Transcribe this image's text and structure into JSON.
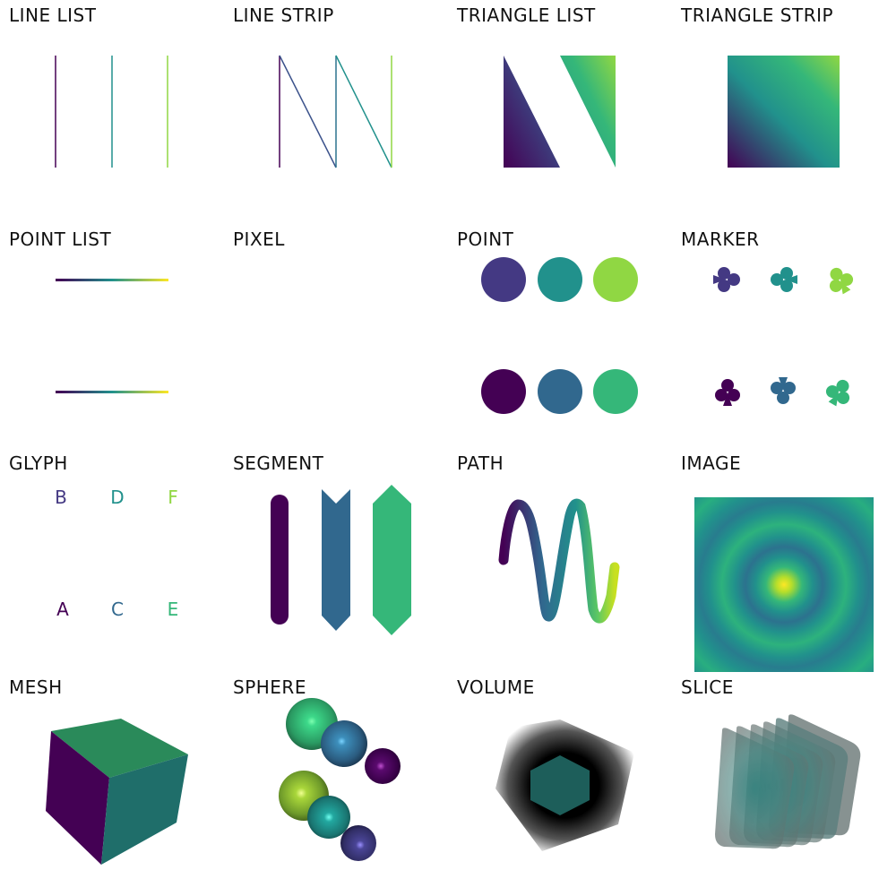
{
  "panels": {
    "line_list": "LINE LIST",
    "line_strip": "LINE STRIP",
    "triangle_list": "TRIANGLE LIST",
    "triangle_strip": "TRIANGLE STRIP",
    "point_list": "POINT LIST",
    "pixel": "PIXEL",
    "point": "POINT",
    "marker": "MARKER",
    "glyph": "GLYPH",
    "segment": "SEGMENT",
    "path": "PATH",
    "image": "IMAGE",
    "mesh": "MESH",
    "sphere": "SPHERE",
    "volume": "VOLUME",
    "slice": "SLICE"
  },
  "glyphs": {
    "top": [
      "B",
      "D",
      "F"
    ],
    "bottom": [
      "A",
      "C",
      "E"
    ]
  },
  "colors": {
    "viridis_0": "#440154",
    "viridis_1": "#443983",
    "viridis_2": "#31688e",
    "viridis_3": "#21918c",
    "viridis_4": "#35b779",
    "viridis_5": "#90d743",
    "viridis_6": "#fde725"
  }
}
